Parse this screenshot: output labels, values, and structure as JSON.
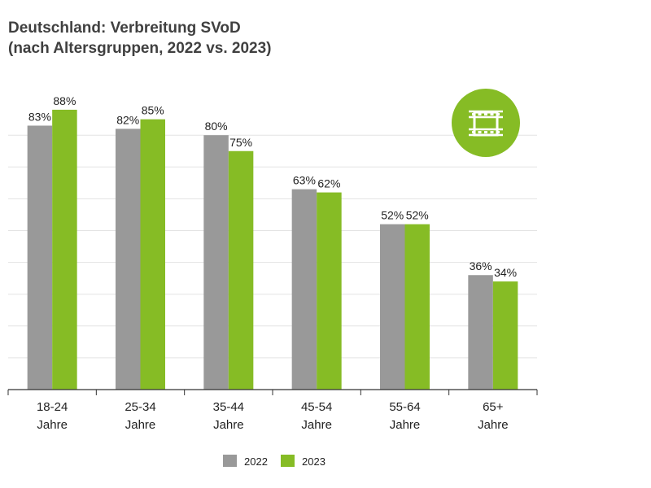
{
  "chart_data": {
    "type": "bar",
    "title": "Deutschland: Verbreitung SVoD",
    "subtitle": "(nach Altersgruppen, 2022 vs. 2023)",
    "categories": [
      [
        "18-24",
        "Jahre"
      ],
      [
        "25-34",
        "Jahre"
      ],
      [
        "35-44",
        "Jahre"
      ],
      [
        "45-54",
        "Jahre"
      ],
      [
        "55-64",
        "Jahre"
      ],
      [
        "65+",
        "Jahre"
      ]
    ],
    "series": [
      {
        "name": "2022",
        "color": "#999999",
        "values": [
          83,
          82,
          80,
          63,
          52,
          36
        ]
      },
      {
        "name": "2023",
        "color": "#86bc25",
        "values": [
          88,
          85,
          75,
          62,
          52,
          34
        ]
      }
    ],
    "value_suffix": "%",
    "ylim": [
      0,
      88
    ],
    "grid": true,
    "gridline_step": 10,
    "legend_position": "bottom",
    "icon": "film-strip-icon",
    "icon_color": "#86bc25"
  }
}
